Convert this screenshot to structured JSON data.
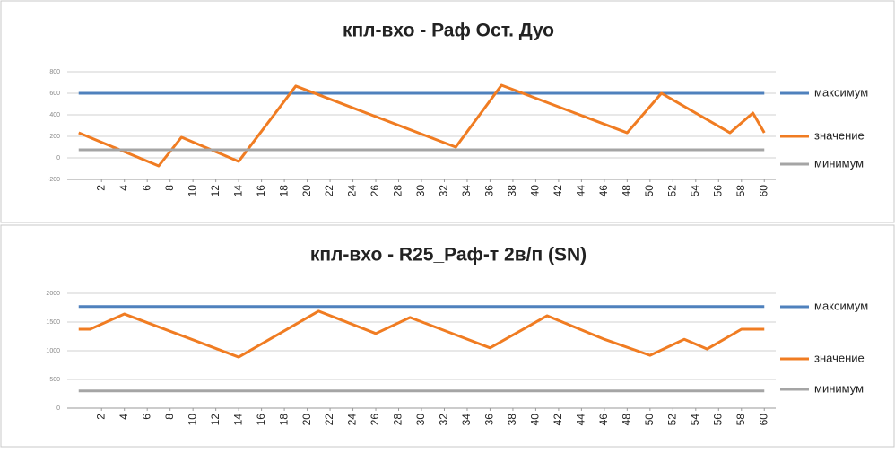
{
  "chart_data": [
    {
      "type": "line",
      "title": "кпл-вхо - Раф Ост. Дуо",
      "x": [
        0,
        7,
        9,
        14,
        19,
        33,
        37,
        48,
        51,
        57,
        59,
        60
      ],
      "series": [
        {
          "name": "максимум",
          "color": "#4f81bd",
          "values": [
            600,
            600,
            600,
            600,
            600,
            600,
            600,
            600,
            600,
            600,
            600,
            600
          ]
        },
        {
          "name": "значение",
          "color": "#f07c22",
          "values": [
            233,
            -75,
            192,
            -33,
            667,
            100,
            675,
            233,
            600,
            233,
            417,
            233
          ]
        },
        {
          "name": "минимум",
          "color": "#a5a5a5",
          "values": [
            75,
            75,
            75,
            75,
            75,
            75,
            75,
            75,
            75,
            75,
            75,
            75
          ]
        }
      ],
      "xlim": [
        -1,
        61
      ],
      "xticks": [
        2,
        4,
        6,
        8,
        10,
        12,
        14,
        16,
        18,
        20,
        22,
        24,
        26,
        28,
        30,
        32,
        34,
        36,
        38,
        40,
        42,
        44,
        46,
        48,
        50,
        52,
        54,
        56,
        58,
        60
      ],
      "ylim": [
        -200,
        800
      ],
      "yticks": [
        -200,
        0,
        200,
        400,
        600,
        800
      ],
      "grid": true,
      "legend": "right"
    },
    {
      "type": "line",
      "title": "кпл-вхо - R25_Раф-т 2в/п (SN)",
      "x": [
        0,
        1,
        4,
        14,
        21,
        26,
        29,
        36,
        41,
        46,
        50,
        53,
        55,
        58,
        60
      ],
      "series": [
        {
          "name": "максимум",
          "color": "#4f81bd",
          "values": [
            1770,
            1770,
            1770,
            1770,
            1770,
            1770,
            1770,
            1770,
            1770,
            1770,
            1770,
            1770,
            1770,
            1770,
            1770
          ]
        },
        {
          "name": "значение",
          "color": "#f07c22",
          "values": [
            1375,
            1375,
            1640,
            890,
            1690,
            1300,
            1580,
            1050,
            1610,
            1200,
            920,
            1200,
            1030,
            1375,
            1375
          ]
        },
        {
          "name": "минимум",
          "color": "#a5a5a5",
          "values": [
            300,
            300,
            300,
            300,
            300,
            300,
            300,
            300,
            300,
            300,
            300,
            300,
            300,
            300,
            300
          ]
        }
      ],
      "xlim": [
        -1,
        61
      ],
      "xticks": [
        2,
        4,
        6,
        8,
        10,
        12,
        14,
        16,
        18,
        20,
        22,
        24,
        26,
        28,
        30,
        32,
        34,
        36,
        38,
        40,
        42,
        44,
        46,
        48,
        50,
        52,
        54,
        56,
        58,
        60
      ],
      "ylim": [
        0,
        2000
      ],
      "yticks": [
        0,
        500,
        1000,
        1500,
        2000
      ],
      "grid": true,
      "legend": "right"
    }
  ]
}
